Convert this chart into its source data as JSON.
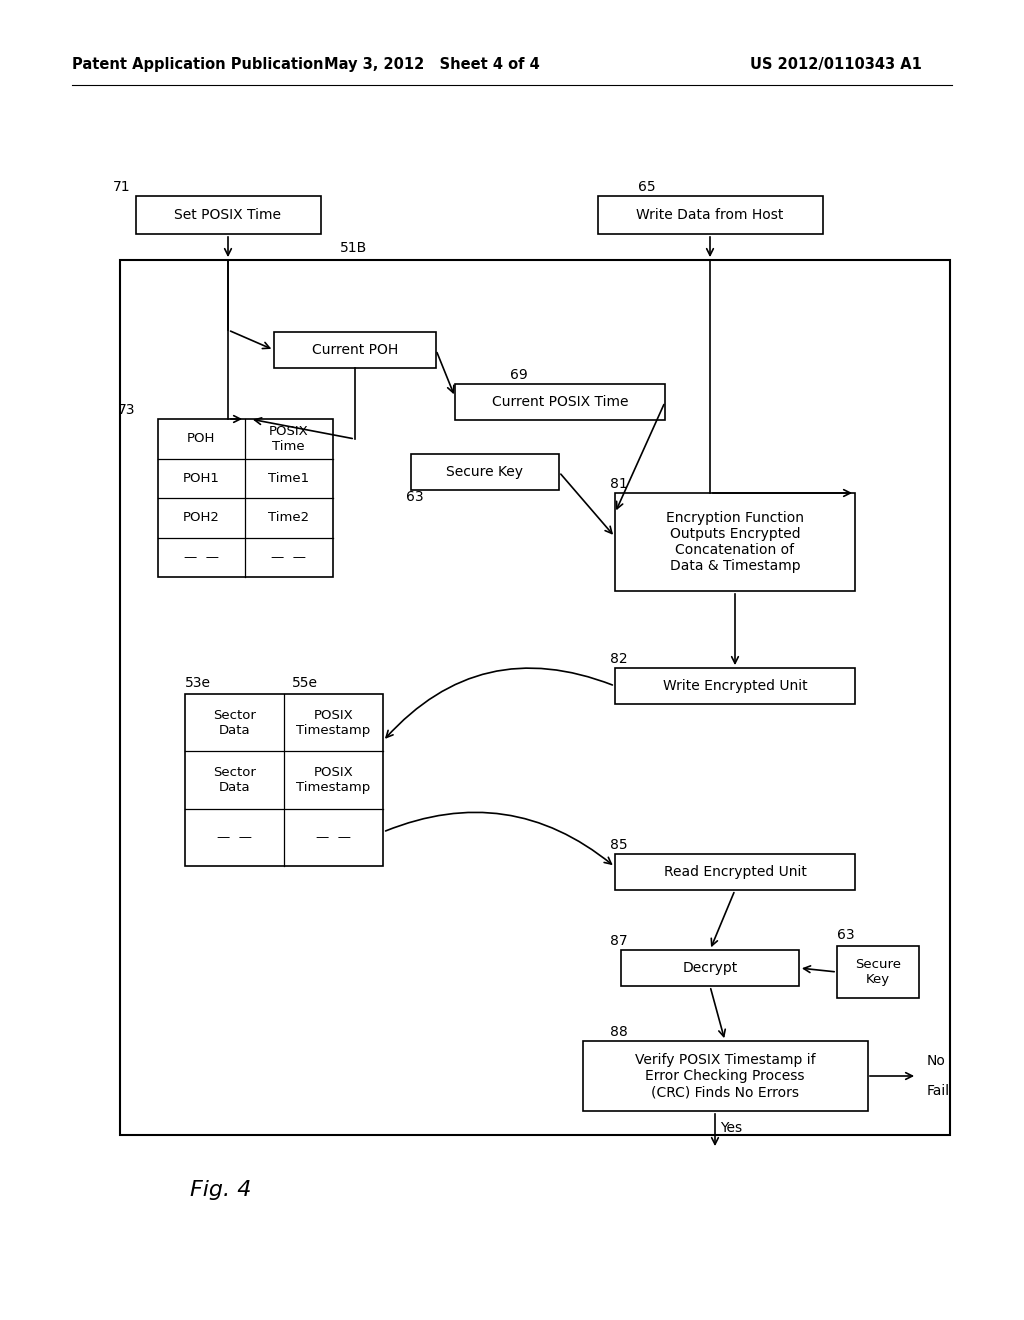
{
  "bg_color": "#ffffff",
  "header_left": "Patent Application Publication",
  "header_mid": "May 3, 2012   Sheet 4 of 4",
  "header_right": "US 2012/0110343 A1",
  "figure_label": "Fig. 4"
}
